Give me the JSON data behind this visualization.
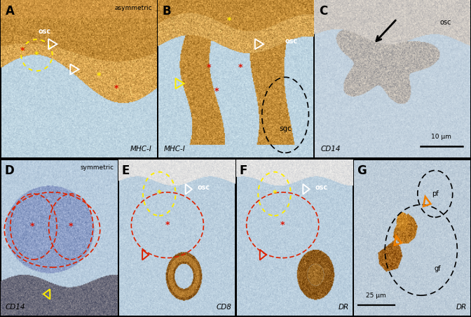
{
  "figure_width": 6.72,
  "figure_height": 4.53,
  "dpi": 100,
  "panel_bg_blue": "#c8d8e8",
  "panel_bg_blue2": "#b8ccdc",
  "brown_tissue": "#c8923a",
  "brown_dark": "#a07030",
  "brown_light": "#d4a868",
  "panel_labels": [
    "A",
    "B",
    "C",
    "D",
    "E",
    "F",
    "G"
  ],
  "top_labels_row": [
    "asymmetric"
  ],
  "bot_labels_row": [
    "symmetric"
  ],
  "stain_labels": [
    "MHC-I",
    "MHC-I",
    "CD14",
    "CD14",
    "CD8",
    "DR",
    "DR"
  ],
  "label_fontsize": 12,
  "stain_fontsize": 8,
  "annotation_fontsize": 7,
  "star_fontsize_yellow": 10,
  "star_fontsize_red": 10,
  "white_arrow_color": "white",
  "yellow_arrow_color": "#ffee00",
  "red_arrow_color": "#dd1100",
  "orange_arrow_color": "#f08000",
  "black_arrow_color": "black",
  "sgc_label": "sgc",
  "osc_label": "osc",
  "pf_label": "pf",
  "gf_label": "gf",
  "scale_10um": "10 μm",
  "scale_25um": "25 μm"
}
